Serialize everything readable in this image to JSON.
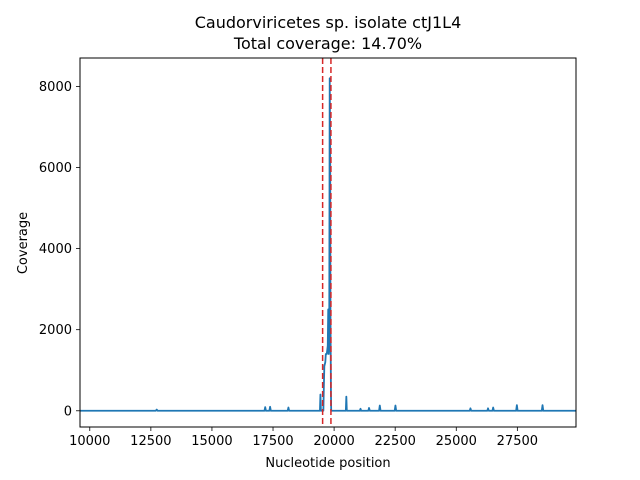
{
  "chart_data": {
    "type": "line",
    "title": "Caudorviricetes sp. isolate ctJ1L4",
    "subtitle": "Total coverage: 14.70%",
    "xlabel": "Nucleotide position",
    "ylabel": "Coverage",
    "xlim": [
      9600,
      29900
    ],
    "ylim": [
      -400,
      8700
    ],
    "x_ticks": [
      10000,
      12500,
      15000,
      17500,
      20000,
      22500,
      25000,
      27500
    ],
    "y_ticks": [
      0,
      2000,
      4000,
      6000,
      8000
    ],
    "grid": false,
    "series": [
      {
        "color": "#1f77b4",
        "x": [
          9600,
          12700,
          12740,
          12780,
          15000,
          17150,
          17180,
          17210,
          17350,
          17380,
          17410,
          18100,
          18130,
          18160,
          19420,
          19440,
          19460,
          19470,
          19560,
          19580,
          19600,
          19640,
          19660,
          19700,
          19720,
          19740,
          19760,
          19780,
          19800,
          19820,
          19840,
          19850,
          19860,
          19870,
          19880,
          19900,
          20480,
          20500,
          20520,
          21050,
          21080,
          21110,
          21400,
          21430,
          21460,
          21840,
          21870,
          21900,
          22480,
          22510,
          22540,
          25550,
          25580,
          25610,
          26270,
          26300,
          26330,
          26480,
          26510,
          26540,
          27450,
          27480,
          27510,
          28500,
          28530,
          28560,
          29900
        ],
        "y": [
          0,
          0,
          30,
          0,
          0,
          0,
          90,
          0,
          0,
          100,
          0,
          0,
          80,
          0,
          0,
          400,
          0,
          0,
          0,
          600,
          1100,
          1200,
          1400,
          1400,
          1500,
          1600,
          2500,
          1400,
          1600,
          8200,
          6500,
          2500,
          1500,
          500,
          0,
          0,
          0,
          350,
          0,
          0,
          50,
          0,
          0,
          70,
          0,
          0,
          130,
          0,
          0,
          130,
          0,
          0,
          60,
          0,
          0,
          60,
          0,
          0,
          80,
          0,
          0,
          140,
          0,
          0,
          140,
          0,
          0
        ]
      }
    ],
    "vlines": [
      {
        "x": 19530,
        "color": "#d62728",
        "style": "dashed"
      },
      {
        "x": 19870,
        "color": "#d62728",
        "style": "dashed"
      }
    ]
  }
}
